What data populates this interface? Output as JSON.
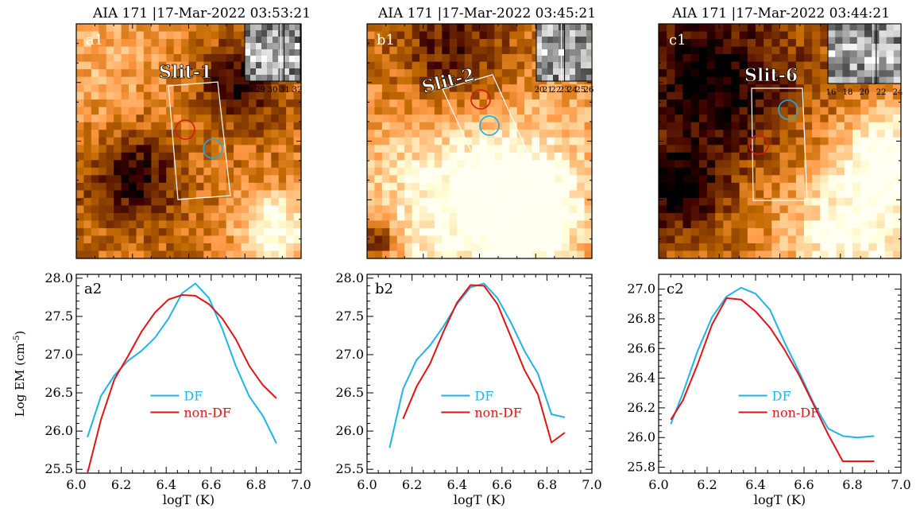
{
  "figure": {
    "y_axis_label": "Log EM (cm",
    "y_axis_label_sup": "-5",
    "y_axis_label_close": ")"
  },
  "images": [
    {
      "title": "AIA 171  |17-Mar-2022 03:53:21",
      "panel_label": "a1",
      "slit_label": "Slit-1",
      "inset_ticks": [
        "28",
        "29",
        "30",
        "31",
        "32"
      ],
      "circle_colors": {
        "df": "#22aadd",
        "non_df": "#d81818"
      }
    },
    {
      "title": "AIA 171  |17-Mar-2022 03:45:21",
      "panel_label": "b1",
      "slit_label": "Slit-2",
      "inset_ticks": [
        "20",
        "21",
        "22",
        "23",
        "24",
        "25",
        "26"
      ],
      "circle_colors": {
        "df": "#22aadd",
        "non_df": "#d81818"
      }
    },
    {
      "title": "AIA 171  |17-Mar-2022 03:44:21",
      "panel_label": "c1",
      "slit_label": "Slit-6",
      "inset_ticks": [
        "16",
        "18",
        "20",
        "22",
        "24"
      ],
      "circle_colors": {
        "df": "#22aadd",
        "non_df": "#d81818"
      }
    }
  ],
  "chart_data": [
    {
      "type": "line",
      "panel_label": "a2",
      "xlabel": "logT (K)",
      "xlim": [
        6.0,
        7.0
      ],
      "ylim": [
        25.45,
        28.05
      ],
      "x_ticks": [
        "6.0",
        "6.2",
        "6.4",
        "6.6",
        "6.8",
        "7.0"
      ],
      "y_ticks": [
        "25.5",
        "26.0",
        "26.5",
        "27.0",
        "27.5",
        "28.0"
      ],
      "legend": {
        "placement": "center-left"
      },
      "series": [
        {
          "name": "DF",
          "color": "#1eb4e6",
          "x": [
            6.05,
            6.11,
            6.17,
            6.23,
            6.29,
            6.35,
            6.41,
            6.47,
            6.53,
            6.59,
            6.65,
            6.71,
            6.77,
            6.83,
            6.89
          ],
          "y": [
            25.92,
            26.46,
            26.73,
            26.92,
            27.05,
            27.22,
            27.47,
            27.8,
            27.93,
            27.74,
            27.33,
            26.85,
            26.45,
            26.2,
            25.84
          ]
        },
        {
          "name": "non-DF",
          "color": "#e01414",
          "x": [
            6.05,
            6.11,
            6.17,
            6.23,
            6.29,
            6.35,
            6.41,
            6.47,
            6.53,
            6.59,
            6.65,
            6.71,
            6.77,
            6.83,
            6.89
          ],
          "y": [
            25.45,
            26.15,
            26.68,
            26.98,
            27.3,
            27.55,
            27.72,
            27.78,
            27.77,
            27.66,
            27.47,
            27.2,
            26.85,
            26.6,
            26.43
          ]
        }
      ]
    },
    {
      "type": "line",
      "panel_label": "b2",
      "xlabel": "logT (K)",
      "xlim": [
        6.0,
        7.0
      ],
      "ylim": [
        25.45,
        28.05
      ],
      "x_ticks": [
        "6.0",
        "6.2",
        "6.4",
        "6.6",
        "6.8",
        "7.0"
      ],
      "y_ticks": [
        "25.5",
        "26.0",
        "26.5",
        "27.0",
        "27.5",
        "28.0"
      ],
      "legend": {
        "placement": "center-left"
      },
      "series": [
        {
          "name": "DF",
          "color": "#1eb4e6",
          "x": [
            6.1,
            6.16,
            6.22,
            6.28,
            6.34,
            6.4,
            6.46,
            6.52,
            6.58,
            6.64,
            6.7,
            6.76,
            6.82,
            6.88
          ],
          "y": [
            25.78,
            26.55,
            26.93,
            27.12,
            27.37,
            27.66,
            27.88,
            27.93,
            27.74,
            27.42,
            27.05,
            26.75,
            26.22,
            26.18
          ]
        },
        {
          "name": "non-DF",
          "color": "#e01414",
          "x": [
            6.16,
            6.22,
            6.28,
            6.34,
            6.4,
            6.46,
            6.52,
            6.58,
            6.64,
            6.7,
            6.76,
            6.82,
            6.88
          ],
          "y": [
            26.16,
            26.58,
            26.88,
            27.3,
            27.68,
            27.91,
            27.9,
            27.66,
            27.23,
            26.8,
            26.48,
            25.85,
            25.98
          ]
        }
      ]
    },
    {
      "type": "line",
      "panel_label": "c2",
      "xlabel": "logT (K)",
      "xlim": [
        6.0,
        7.0
      ],
      "ylim": [
        25.76,
        27.1
      ],
      "x_ticks": [
        "6.0",
        "6.2",
        "6.4",
        "6.6",
        "6.8",
        "7.0"
      ],
      "y_ticks": [
        "25.8",
        "26.0",
        "26.2",
        "26.4",
        "26.6",
        "26.8",
        "27.0"
      ],
      "legend": {
        "placement": "center-left"
      },
      "series": [
        {
          "name": "DF",
          "color": "#1eb4e6",
          "x": [
            6.05,
            6.1,
            6.16,
            6.22,
            6.28,
            6.34,
            6.4,
            6.46,
            6.52,
            6.58,
            6.64,
            6.7,
            6.76,
            6.82,
            6.89
          ],
          "y": [
            26.09,
            26.3,
            26.58,
            26.81,
            26.95,
            27.01,
            26.97,
            26.86,
            26.64,
            26.44,
            26.23,
            26.06,
            26.01,
            26.0,
            26.01
          ]
        },
        {
          "name": "non-DF",
          "color": "#e01414",
          "x": [
            6.05,
            6.1,
            6.16,
            6.22,
            6.28,
            6.34,
            6.4,
            6.46,
            6.52,
            6.58,
            6.64,
            6.7,
            6.76,
            6.82,
            6.89
          ],
          "y": [
            26.12,
            26.25,
            26.49,
            26.76,
            26.94,
            26.93,
            26.85,
            26.74,
            26.59,
            26.42,
            26.22,
            26.02,
            25.84,
            25.84,
            25.84
          ]
        }
      ]
    }
  ]
}
